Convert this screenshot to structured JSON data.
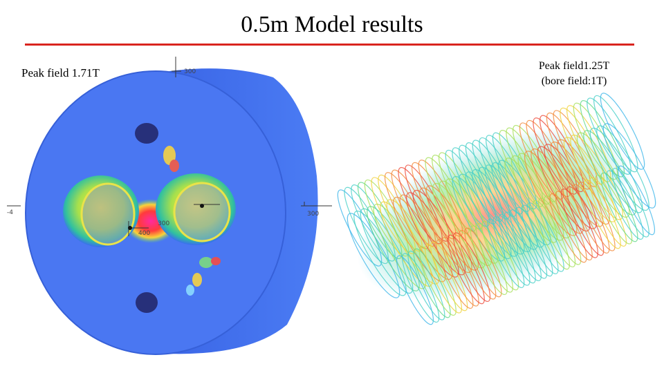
{
  "slide": {
    "title": "0.5m Model results",
    "left_label": "Peak field 1.71T",
    "right_label_line1": "Peak field1.25T",
    "right_label_line2": "(bore field:1T)"
  },
  "colors": {
    "title_rule": "#d9241e",
    "field_low": "#3a6cf0",
    "field_mid": "#39d66b",
    "field_high": "#f2e23a",
    "field_peak": "#e8318a"
  },
  "axis_marks": {
    "top": "300",
    "left": "-4",
    "right": "300",
    "center_a": "400",
    "center_b": "300"
  }
}
